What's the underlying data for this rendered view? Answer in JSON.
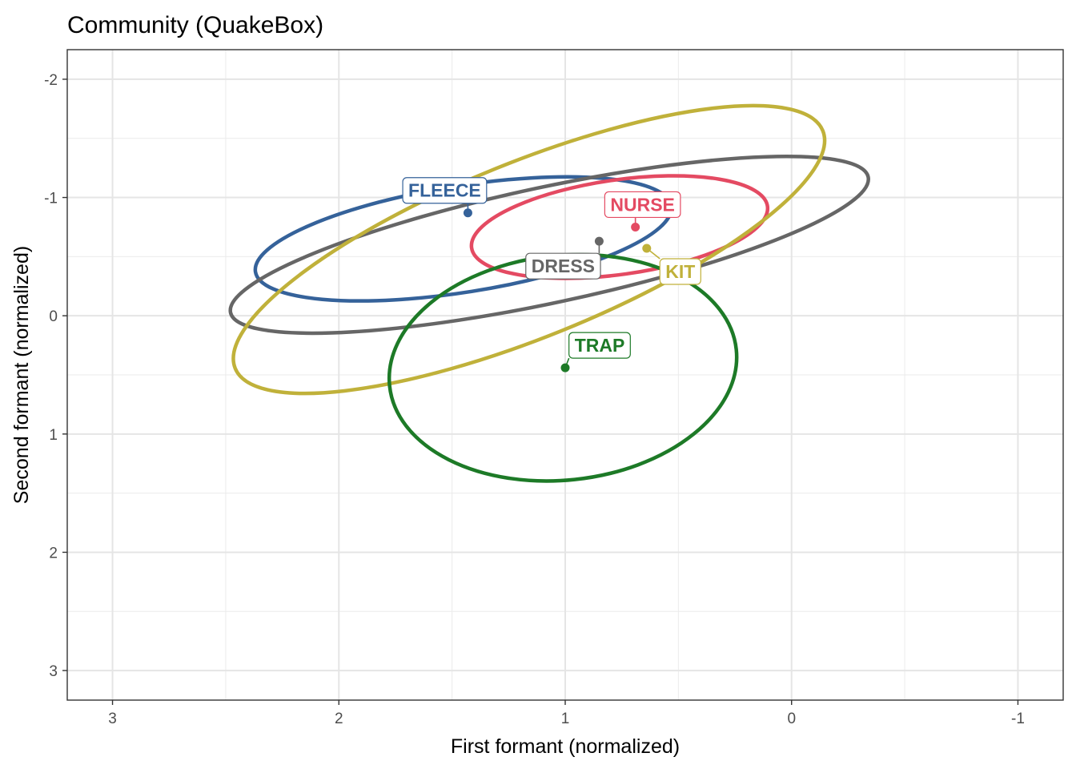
{
  "chart_data": {
    "type": "scatter",
    "title": "Community (QuakeBox)",
    "xlabel": "First formant (normalized)",
    "ylabel": "Second formant (normalized)",
    "xlim": [
      3.2,
      -1.2
    ],
    "ylim": [
      -2.25,
      3.25
    ],
    "x_reversed": true,
    "y_reversed": true,
    "xticks": [
      3,
      2,
      1,
      0,
      -1
    ],
    "xtick_labels": [
      "3",
      "2",
      "1",
      "0",
      "-1"
    ],
    "yticks": [
      -2,
      -1,
      0,
      1,
      2,
      3
    ],
    "ytick_labels": [
      "-2",
      "-1",
      "0",
      "1",
      "2",
      "3"
    ],
    "grid": true,
    "legend": "none",
    "series": [
      {
        "name": "FLEECE",
        "color": "#35629a",
        "point": {
          "x": 1.43,
          "y": -0.87
        },
        "ellipse": {
          "cx": 1.45,
          "cy": -0.65,
          "rx": 0.93,
          "ry": 0.45,
          "angle": -9
        }
      },
      {
        "name": "NURSE",
        "color": "#e44a62",
        "point": {
          "x": 0.69,
          "y": -0.75
        },
        "ellipse": {
          "cx": 0.76,
          "cy": -0.75,
          "rx": 0.66,
          "ry": 0.4,
          "angle": -8
        }
      },
      {
        "name": "DRESS",
        "color": "#666666",
        "point": {
          "x": 0.85,
          "y": -0.63
        },
        "ellipse": {
          "cx": 1.07,
          "cy": -0.6,
          "rx": 1.44,
          "ry": 0.49,
          "angle": -12
        }
      },
      {
        "name": "KIT",
        "color": "#c0b13a",
        "point": {
          "x": 0.64,
          "y": -0.57
        },
        "ellipse": {
          "cx": 1.16,
          "cy": -0.56,
          "rx": 1.4,
          "ry": 0.74,
          "angle": -22
        }
      },
      {
        "name": "TRAP",
        "color": "#1d7a27",
        "point": {
          "x": 1.0,
          "y": 0.44
        },
        "ellipse": {
          "cx": 1.01,
          "cy": 0.44,
          "rx": 0.77,
          "ry": 0.95,
          "angle": -6
        }
      }
    ]
  }
}
